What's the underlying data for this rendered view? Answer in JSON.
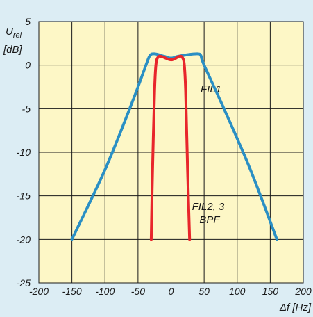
{
  "colors": {
    "background": "#dcedf4",
    "plot_area": "#fdf7c6",
    "grid": "#1a1a1a",
    "text": "#1a1a1a"
  },
  "chart_data": {
    "type": "line",
    "xlabel": "Δf [Hz]",
    "ylabel": "U",
    "ylabel_subscript": "rel",
    "ylabel_unit": "[dB]",
    "xlim": [
      -200,
      200
    ],
    "ylim": [
      -25,
      5
    ],
    "xticks": [
      -200,
      -150,
      -100,
      -50,
      0,
      50,
      100,
      150,
      200
    ],
    "yticks": [
      5,
      0,
      -5,
      -10,
      -15,
      -20,
      -25
    ],
    "grid": true,
    "series": [
      {
        "name": "FIL1",
        "color": "#2a8fc4",
        "points": [
          [
            -150,
            -20
          ],
          [
            -100,
            -12
          ],
          [
            -60,
            -4.5
          ],
          [
            -38,
            0
          ],
          [
            -32,
            1.1
          ],
          [
            -25,
            1.3
          ],
          [
            -10,
            1.0
          ],
          [
            0,
            0.8
          ],
          [
            10,
            1.0
          ],
          [
            25,
            1.2
          ],
          [
            40,
            1.3
          ],
          [
            45,
            1.1
          ],
          [
            50,
            0
          ],
          [
            80,
            -5
          ],
          [
            120,
            -12
          ],
          [
            160,
            -20
          ]
        ]
      },
      {
        "name": "FIL2, 3\nBPF",
        "name_lines": [
          "FIL2, 3",
          "BPF"
        ],
        "color": "#e8262b",
        "points": [
          [
            -30,
            -20
          ],
          [
            -28,
            -12
          ],
          [
            -25,
            -3
          ],
          [
            -23,
            0
          ],
          [
            -20,
            0.9
          ],
          [
            -15,
            1.0
          ],
          [
            -5,
            0.7
          ],
          [
            0,
            0.6
          ],
          [
            5,
            0.7
          ],
          [
            12,
            1.0
          ],
          [
            17,
            0.9
          ],
          [
            20,
            0
          ],
          [
            22,
            -3
          ],
          [
            25,
            -12
          ],
          [
            28,
            -20
          ]
        ]
      }
    ]
  }
}
